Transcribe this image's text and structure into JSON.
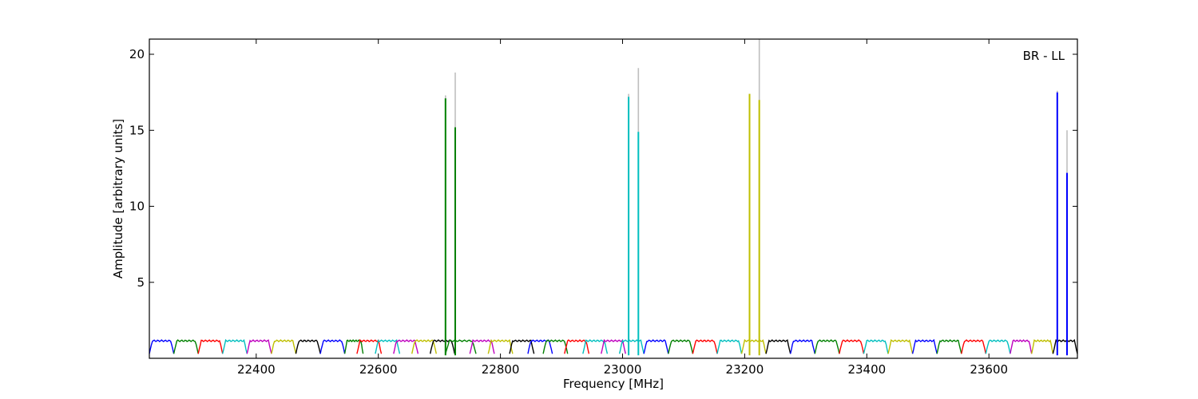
{
  "chart_data": {
    "type": "line",
    "title": "",
    "corner_label": "BR - LL",
    "xlabel": "Frequency [MHz]",
    "ylabel": "Amplitude [arbitrary units]",
    "xlim": [
      22225,
      23745
    ],
    "ylim": [
      0,
      21
    ],
    "xticks": [
      22400,
      22600,
      22800,
      23000,
      23200,
      23400,
      23600
    ],
    "yticks": [
      5,
      10,
      15,
      20
    ],
    "grid": false,
    "legend": "none",
    "baseline": {
      "level_high": 1.15,
      "level_low": 0.3,
      "band_width_mhz": 40,
      "colors": [
        "#0000ff",
        "#008000",
        "#ff0000",
        "#00bfbf",
        "#bf00bf",
        "#bfbf00",
        "#000000"
      ],
      "bands": [
        {
          "x0": 22225,
          "x1": 22265,
          "color": "#0000ff"
        },
        {
          "x0": 22265,
          "x1": 22305,
          "color": "#008000"
        },
        {
          "x0": 22305,
          "x1": 22345,
          "color": "#ff0000"
        },
        {
          "x0": 22345,
          "x1": 22385,
          "color": "#00bfbf"
        },
        {
          "x0": 22385,
          "x1": 22425,
          "color": "#bf00bf"
        },
        {
          "x0": 22425,
          "x1": 22465,
          "color": "#bfbf00"
        },
        {
          "x0": 22465,
          "x1": 22505,
          "color": "#000000"
        },
        {
          "x0": 22505,
          "x1": 22545,
          "color": "#0000ff"
        },
        {
          "x0": 22545,
          "x1": 22575,
          "color": "#008000"
        },
        {
          "x0": 22565,
          "x1": 22605,
          "color": "#ff0000"
        },
        {
          "x0": 22595,
          "x1": 22635,
          "color": "#00bfbf"
        },
        {
          "x0": 22625,
          "x1": 22665,
          "color": "#bf00bf"
        },
        {
          "x0": 22655,
          "x1": 22695,
          "color": "#bfbf00"
        },
        {
          "x0": 22685,
          "x1": 22725,
          "color": "#000000"
        },
        {
          "x0": 22710,
          "x1": 22760,
          "color": "#008000"
        },
        {
          "x0": 22750,
          "x1": 22790,
          "color": "#bf00bf"
        },
        {
          "x0": 22780,
          "x1": 22820,
          "color": "#bfbf00"
        },
        {
          "x0": 22815,
          "x1": 22855,
          "color": "#000000"
        },
        {
          "x0": 22845,
          "x1": 22885,
          "color": "#0000ff"
        },
        {
          "x0": 22870,
          "x1": 22910,
          "color": "#008000"
        },
        {
          "x0": 22905,
          "x1": 22945,
          "color": "#ff0000"
        },
        {
          "x0": 22935,
          "x1": 22975,
          "color": "#00bfbf"
        },
        {
          "x0": 22965,
          "x1": 23005,
          "color": "#bf00bf"
        },
        {
          "x0": 22995,
          "x1": 23035,
          "color": "#00bfbf"
        },
        {
          "x0": 23035,
          "x1": 23075,
          "color": "#0000ff"
        },
        {
          "x0": 23075,
          "x1": 23115,
          "color": "#008000"
        },
        {
          "x0": 23115,
          "x1": 23155,
          "color": "#ff0000"
        },
        {
          "x0": 23155,
          "x1": 23195,
          "color": "#00bfbf"
        },
        {
          "x0": 23195,
          "x1": 23235,
          "color": "#bfbf00"
        },
        {
          "x0": 23235,
          "x1": 23275,
          "color": "#000000"
        },
        {
          "x0": 23275,
          "x1": 23315,
          "color": "#0000ff"
        },
        {
          "x0": 23315,
          "x1": 23355,
          "color": "#008000"
        },
        {
          "x0": 23355,
          "x1": 23395,
          "color": "#ff0000"
        },
        {
          "x0": 23395,
          "x1": 23435,
          "color": "#00bfbf"
        },
        {
          "x0": 23435,
          "x1": 23475,
          "color": "#bfbf00"
        },
        {
          "x0": 23475,
          "x1": 23515,
          "color": "#0000ff"
        },
        {
          "x0": 23515,
          "x1": 23555,
          "color": "#008000"
        },
        {
          "x0": 23555,
          "x1": 23595,
          "color": "#ff0000"
        },
        {
          "x0": 23595,
          "x1": 23635,
          "color": "#00bfbf"
        },
        {
          "x0": 23635,
          "x1": 23670,
          "color": "#bf00bf"
        },
        {
          "x0": 23670,
          "x1": 23705,
          "color": "#bfbf00"
        },
        {
          "x0": 23705,
          "x1": 23745,
          "color": "#000000"
        }
      ]
    },
    "peaks": [
      {
        "x": 22710,
        "y": 17.1,
        "ghost_y": 17.3,
        "color": "#008000"
      },
      {
        "x": 22726,
        "y": 15.2,
        "ghost_y": 18.8,
        "color": "#008000"
      },
      {
        "x": 23010,
        "y": 17.2,
        "ghost_y": 17.4,
        "color": "#00bfbf"
      },
      {
        "x": 23026,
        "y": 14.9,
        "ghost_y": 19.1,
        "color": "#00bfbf"
      },
      {
        "x": 23208,
        "y": 17.4,
        "ghost_y": 17.4,
        "color": "#bfbf00"
      },
      {
        "x": 23224,
        "y": 17.0,
        "ghost_y": 21.0,
        "color": "#bfbf00"
      },
      {
        "x": 23712,
        "y": 17.5,
        "ghost_y": 17.6,
        "color": "#0000ff"
      },
      {
        "x": 23728,
        "y": 12.2,
        "ghost_y": 15.0,
        "color": "#0000ff"
      }
    ],
    "ghost_color": "#bfbfbf"
  }
}
